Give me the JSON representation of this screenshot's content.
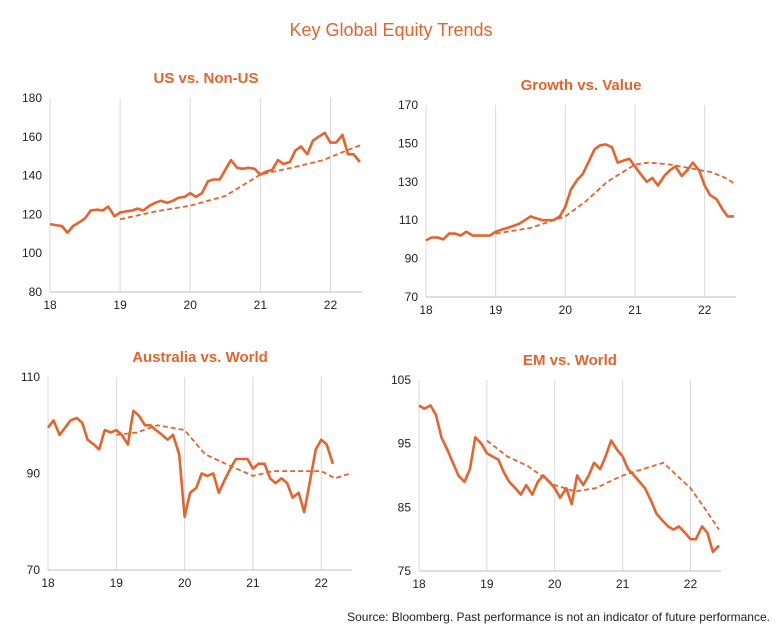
{
  "title": "Key Global Equity Trends",
  "source": "Source:  Bloomberg.  Past performance  is not an indicator of future performance.",
  "colors": {
    "series": "#E8622C",
    "grid": "#d9d9d9",
    "text": "#222222"
  },
  "chart_data": [
    {
      "type": "line",
      "title": "US vs. Non-US",
      "x_ticks": [
        "18",
        "19",
        "20",
        "21",
        "22"
      ],
      "xlim": [
        18,
        22.45
      ],
      "ylim": [
        80,
        180
      ],
      "y_ticks": [
        80,
        100,
        120,
        140,
        160,
        180
      ],
      "grid": "vertical",
      "series": [
        {
          "style": "solid",
          "x": [
            18,
            18.08,
            18.17,
            18.25,
            18.33,
            18.42,
            18.5,
            18.58,
            18.67,
            18.75,
            18.83,
            18.92,
            19,
            19.08,
            19.17,
            19.25,
            19.33,
            19.42,
            19.5,
            19.58,
            19.67,
            19.75,
            19.83,
            19.92,
            20,
            20.08,
            20.17,
            20.25,
            20.33,
            20.42,
            20.5,
            20.58,
            20.67,
            20.75,
            20.83,
            20.92,
            21,
            21.08,
            21.17,
            21.25,
            21.33,
            21.42,
            21.5,
            21.58,
            21.67,
            21.75,
            21.83,
            21.92,
            22,
            22.08,
            22.17,
            22.25,
            22.33,
            22.42
          ],
          "y": [
            115,
            114.5,
            114,
            110.5,
            114,
            116,
            118,
            122,
            122.5,
            122,
            124,
            119,
            121,
            121.5,
            122,
            123,
            122,
            124.5,
            126,
            127,
            126,
            127,
            128.5,
            129,
            131,
            129,
            131,
            137,
            138,
            138,
            143,
            148,
            144,
            143.5,
            144,
            143.5,
            140.5,
            142,
            143,
            148,
            146,
            147,
            153,
            155,
            151,
            158,
            160,
            162,
            157,
            157,
            161,
            151,
            151,
            147
          ]
        },
        {
          "style": "dashed",
          "x": [
            19,
            19.5,
            20,
            20.5,
            21,
            21.5,
            21.9,
            22.2,
            22.45
          ],
          "y": [
            117.5,
            121.5,
            124.5,
            129.5,
            140.5,
            144.5,
            148,
            152.5,
            156
          ]
        }
      ]
    },
    {
      "type": "line",
      "title": "Growth vs. Value",
      "x_ticks": [
        "18",
        "19",
        "20",
        "21",
        "22"
      ],
      "xlim": [
        18,
        22.45
      ],
      "ylim": [
        70,
        170
      ],
      "y_ticks": [
        70,
        90,
        110,
        130,
        150,
        170
      ],
      "grid": "vertical",
      "series": [
        {
          "style": "solid",
          "x": [
            18,
            18.08,
            18.17,
            18.25,
            18.33,
            18.42,
            18.5,
            18.58,
            18.67,
            18.75,
            18.83,
            18.92,
            19,
            19.08,
            19.17,
            19.25,
            19.33,
            19.42,
            19.5,
            19.58,
            19.67,
            19.75,
            19.83,
            19.92,
            20,
            20.08,
            20.17,
            20.25,
            20.33,
            20.42,
            20.5,
            20.58,
            20.67,
            20.75,
            20.83,
            20.92,
            21,
            21.08,
            21.17,
            21.25,
            21.33,
            21.42,
            21.5,
            21.58,
            21.67,
            21.75,
            21.83,
            21.92,
            22,
            22.08,
            22.17,
            22.25,
            22.33,
            22.42
          ],
          "y": [
            99.5,
            101,
            101,
            100,
            103,
            103,
            102,
            104,
            102,
            102,
            102,
            102,
            104,
            105,
            106,
            107,
            108,
            110,
            112,
            111,
            110,
            110,
            110,
            112,
            117,
            126,
            131,
            134,
            140,
            147,
            149,
            149.5,
            148,
            140,
            141,
            142,
            138,
            134,
            130,
            132,
            128,
            133,
            136,
            138,
            133,
            136,
            140,
            136,
            128,
            123,
            121,
            116,
            112,
            112
          ]
        },
        {
          "style": "dashed",
          "x": [
            19,
            19.5,
            20,
            20.3,
            20.6,
            21,
            21.2,
            21.5,
            21.8,
            22.1,
            22.3,
            22.45
          ],
          "y": [
            103,
            106,
            112,
            120,
            130,
            139,
            140,
            139,
            137,
            135,
            132,
            128.5
          ]
        }
      ]
    },
    {
      "type": "line",
      "title": "Australia vs. World",
      "x_ticks": [
        "18",
        "19",
        "20",
        "21",
        "22"
      ],
      "xlim": [
        18,
        22.45
      ],
      "ylim": [
        70,
        110
      ],
      "y_ticks": [
        70,
        90,
        110
      ],
      "grid": "vertical",
      "series": [
        {
          "style": "solid",
          "x": [
            18,
            18.08,
            18.17,
            18.25,
            18.33,
            18.42,
            18.5,
            18.58,
            18.67,
            18.75,
            18.83,
            18.92,
            19,
            19.08,
            19.17,
            19.25,
            19.33,
            19.42,
            19.5,
            19.58,
            19.67,
            19.75,
            19.83,
            19.92,
            20,
            20.08,
            20.17,
            20.25,
            20.33,
            20.42,
            20.5,
            20.58,
            20.67,
            20.75,
            20.83,
            20.92,
            21,
            21.08,
            21.17,
            21.25,
            21.33,
            21.42,
            21.5,
            21.58,
            21.67,
            21.75,
            21.83,
            21.92,
            22,
            22.08,
            22.17,
            22.25,
            22.33,
            22.42
          ],
          "y": [
            99.5,
            101,
            98,
            99.5,
            101,
            101.5,
            100.5,
            97,
            96,
            95,
            99,
            98.5,
            99,
            98,
            96,
            103,
            102,
            100,
            100,
            99,
            98,
            97,
            98,
            94,
            81,
            86,
            87,
            90,
            89.5,
            90,
            86,
            88.5,
            91,
            93,
            93,
            93,
            91,
            92,
            92,
            89,
            88,
            89,
            88,
            85,
            86,
            82,
            88,
            95,
            97,
            96,
            92,
            null,
            null,
            null
          ]
        },
        {
          "style": "dashed",
          "x": [
            19,
            19.3,
            19.6,
            20,
            20.3,
            20.6,
            21,
            21.3,
            21.6,
            22,
            22.2,
            22.42
          ],
          "y": [
            98,
            98.5,
            100,
            99,
            94,
            92,
            89.5,
            90.5,
            90.5,
            90.5,
            89,
            90
          ]
        }
      ]
    },
    {
      "type": "line",
      "title": "EM vs. World",
      "x_ticks": [
        "18",
        "19",
        "20",
        "21",
        "22"
      ],
      "xlim": [
        18,
        22.45
      ],
      "ylim": [
        75,
        105
      ],
      "y_ticks": [
        75,
        85,
        95,
        105
      ],
      "grid": "vertical",
      "series": [
        {
          "style": "solid",
          "x": [
            18,
            18.08,
            18.17,
            18.25,
            18.33,
            18.42,
            18.5,
            18.58,
            18.67,
            18.75,
            18.83,
            18.92,
            19,
            19.08,
            19.17,
            19.25,
            19.33,
            19.42,
            19.5,
            19.58,
            19.67,
            19.75,
            19.83,
            19.92,
            20,
            20.08,
            20.17,
            20.25,
            20.33,
            20.42,
            20.5,
            20.58,
            20.67,
            20.75,
            20.83,
            20.92,
            21,
            21.08,
            21.17,
            21.25,
            21.33,
            21.42,
            21.5,
            21.58,
            21.67,
            21.75,
            21.83,
            21.92,
            22,
            22.08,
            22.17,
            22.25,
            22.33,
            22.42
          ],
          "y": [
            101,
            100.5,
            101,
            99.5,
            96,
            94,
            92,
            90,
            89,
            91,
            96,
            95,
            93.5,
            93,
            92.5,
            90.5,
            89,
            88,
            87,
            88.5,
            87,
            89,
            90,
            89,
            88,
            86.5,
            88,
            85.5,
            90,
            88.5,
            90,
            92,
            91,
            93,
            95.5,
            94,
            93,
            91,
            90,
            89,
            88,
            86,
            84,
            83,
            82,
            81.5,
            82,
            81,
            80,
            80,
            82,
            81,
            78,
            79
          ]
        },
        {
          "style": "dashed",
          "x": [
            19,
            19.3,
            19.6,
            20,
            20.3,
            20.6,
            21,
            21.3,
            21.6,
            22,
            22.2,
            22.42
          ],
          "y": [
            95.5,
            93,
            91.5,
            88.5,
            87.5,
            88,
            90,
            91,
            92,
            88,
            85,
            81.5
          ]
        }
      ]
    }
  ]
}
